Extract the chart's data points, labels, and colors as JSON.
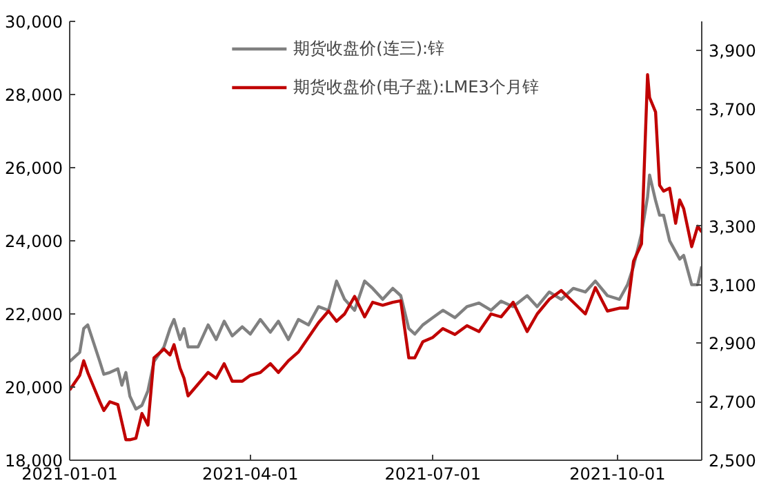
{
  "chart_data": {
    "type": "line",
    "x": [
      "2021-01-01",
      "2021-01-06",
      "2021-01-08",
      "2021-01-10",
      "2021-01-13",
      "2021-01-16",
      "2021-01-18",
      "2021-01-21",
      "2021-01-25",
      "2021-01-27",
      "2021-01-29",
      "2021-01-31",
      "2021-02-03",
      "2021-02-06",
      "2021-02-09",
      "2021-02-12",
      "2021-02-17",
      "2021-02-20",
      "2021-02-22",
      "2021-02-25",
      "2021-02-27",
      "2021-03-01",
      "2021-03-06",
      "2021-03-11",
      "2021-03-15",
      "2021-03-19",
      "2021-03-23",
      "2021-03-28",
      "2021-04-01",
      "2021-04-06",
      "2021-04-11",
      "2021-04-15",
      "2021-04-20",
      "2021-04-25",
      "2021-04-30",
      "2021-05-05",
      "2021-05-10",
      "2021-05-14",
      "2021-05-18",
      "2021-05-23",
      "2021-05-28",
      "2021-06-01",
      "2021-06-06",
      "2021-06-11",
      "2021-06-15",
      "2021-06-19",
      "2021-06-22",
      "2021-06-26",
      "2021-07-01",
      "2021-07-06",
      "2021-07-12",
      "2021-07-18",
      "2021-07-24",
      "2021-07-30",
      "2021-08-04",
      "2021-08-10",
      "2021-08-17",
      "2021-08-22",
      "2021-08-28",
      "2021-09-03",
      "2021-09-09",
      "2021-09-15",
      "2021-09-20",
      "2021-09-26",
      "2021-10-02",
      "2021-10-06",
      "2021-10-09",
      "2021-10-13",
      "2021-10-16",
      "2021-10-17",
      "2021-10-20",
      "2021-10-22",
      "2021-10-24",
      "2021-10-27",
      "2021-10-30",
      "2021-11-01",
      "2021-11-03",
      "2021-11-07",
      "2021-11-10",
      "2021-11-12"
    ],
    "series": [
      {
        "name": "期货收盘价(连三):锌",
        "color": "#808080",
        "values": [
          20700,
          20950,
          21600,
          21700,
          21200,
          20700,
          20350,
          20400,
          20500,
          20050,
          20400,
          19750,
          19400,
          19500,
          19900,
          20700,
          21100,
          21600,
          21850,
          21300,
          21600,
          21100,
          21100,
          21700,
          21300,
          21800,
          21400,
          21650,
          21450,
          21850,
          21500,
          21800,
          21300,
          21850,
          21700,
          22200,
          22100,
          22900,
          22400,
          22100,
          22900,
          22700,
          22400,
          22700,
          22500,
          21600,
          21450,
          21700,
          21900,
          22100,
          21900,
          22200,
          22300,
          22100,
          22350,
          22200,
          22500,
          22200,
          22600,
          22400,
          22700,
          22600,
          22900,
          22500,
          22400,
          22800,
          23300,
          24200,
          25200,
          25800,
          25100,
          24700,
          24700,
          24000,
          23700,
          23500,
          23600,
          22800,
          22800,
          23300
        ]
      },
      {
        "name": "期货收盘价(电子盘):LME3个月锌",
        "color": "#c00000",
        "axis": "y2",
        "values": [
          2740,
          2790,
          2840,
          2800,
          2750,
          2700,
          2670,
          2700,
          2690,
          2630,
          2570,
          2570,
          2575,
          2660,
          2620,
          2850,
          2880,
          2860,
          2895,
          2815,
          2780,
          2720,
          2760,
          2800,
          2780,
          2830,
          2770,
          2770,
          2790,
          2800,
          2830,
          2800,
          2840,
          2870,
          2920,
          2970,
          3010,
          2975,
          3000,
          3060,
          2990,
          3040,
          3030,
          3040,
          3045,
          2850,
          2850,
          2905,
          2920,
          2950,
          2930,
          2960,
          2940,
          3000,
          2990,
          3040,
          2940,
          3000,
          3050,
          3080,
          3040,
          3000,
          3090,
          3010,
          3020,
          3020,
          3180,
          3240,
          3818,
          3740,
          3690,
          3440,
          3420,
          3430,
          3310,
          3390,
          3360,
          3230,
          3300,
          3280
        ]
      }
    ],
    "xlim": [
      "2021-01-01",
      "2021-11-12"
    ],
    "xticks": [
      "2021-01-01",
      "2021-04-01",
      "2021-07-01",
      "2021-10-01"
    ],
    "ylim": [
      18000,
      30000
    ],
    "yticks": [
      {
        "value": 18000,
        "label": "18,000"
      },
      {
        "value": 20000,
        "label": "20,000"
      },
      {
        "value": 22000,
        "label": "22,000"
      },
      {
        "value": 24000,
        "label": "24,000"
      },
      {
        "value": 26000,
        "label": "26,000"
      },
      {
        "value": 28000,
        "label": "28,000"
      },
      {
        "value": 30000,
        "label": "30,000"
      }
    ],
    "y2lim": [
      2500,
      4000
    ],
    "y2ticks": [
      {
        "value": 2500,
        "label": "2,500"
      },
      {
        "value": 2700,
        "label": "2,700"
      },
      {
        "value": 2900,
        "label": "2,900"
      },
      {
        "value": 3100,
        "label": "3,100"
      },
      {
        "value": 3300,
        "label": "3,300"
      },
      {
        "value": 3500,
        "label": "3,500"
      },
      {
        "value": 3700,
        "label": "3,700"
      },
      {
        "value": 3900,
        "label": "3,900"
      }
    ],
    "legend": "top",
    "grid": false
  }
}
